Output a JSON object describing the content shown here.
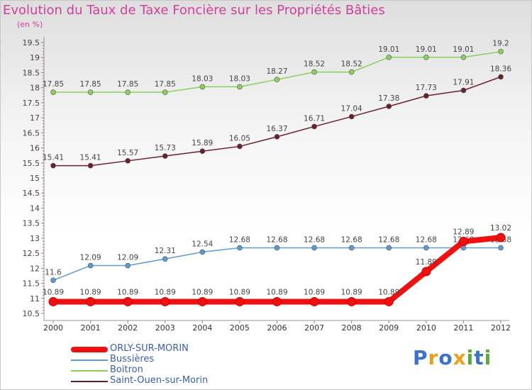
{
  "page": {
    "title": "Evolution du Taux de Taxe Foncière sur les Propriétés Bâties",
    "subtitle": "(en %)"
  },
  "chart_data": {
    "type": "line",
    "x": [
      "2000",
      "2001",
      "2002",
      "2003",
      "2004",
      "2005",
      "2006",
      "2007",
      "2008",
      "2009",
      "2010",
      "2011",
      "2012"
    ],
    "ylim": [
      10.5,
      19.5
    ],
    "y_ticks": [
      "10.5",
      "11",
      "11.5",
      "12",
      "12.5",
      "13",
      "13.5",
      "14",
      "14.5",
      "15",
      "15.5",
      "16",
      "16.5",
      "17",
      "17.5",
      "18",
      "18.5",
      "19",
      "19.5"
    ],
    "grid": false,
    "legend_position": "bottom-left",
    "series": [
      {
        "name": "Boitron",
        "color": "#8ccf5a",
        "values": [
          17.85,
          17.85,
          17.85,
          17.85,
          18.03,
          18.03,
          18.27,
          18.52,
          18.52,
          19.01,
          19.01,
          19.01,
          19.2
        ],
        "labels": [
          "17.85",
          "17.85",
          "17.85",
          "17.85",
          "18.03",
          "18.03",
          "18.27",
          "18.52",
          "18.52",
          "19.01",
          "19.01",
          "19.01",
          "19.2"
        ]
      },
      {
        "name": "Saint-Ouen-sur-Morin",
        "color": "#6b1f2a",
        "values": [
          15.41,
          15.41,
          15.57,
          15.73,
          15.89,
          16.05,
          16.37,
          16.71,
          17.04,
          17.38,
          17.73,
          17.91,
          18.36
        ],
        "labels": [
          "15.41",
          "15.41",
          "15.57",
          "15.73",
          "15.89",
          "16.05",
          "16.37",
          "16.71",
          "17.04",
          "17.38",
          "17.73",
          "17.91",
          "18.36"
        ]
      },
      {
        "name": "Bussières",
        "color": "#5b9bd0",
        "values": [
          11.6,
          12.09,
          12.09,
          12.31,
          12.54,
          12.68,
          12.68,
          12.68,
          12.68,
          12.68,
          12.68,
          12.68,
          12.68
        ],
        "labels": [
          "11.6",
          "12.09",
          "12.09",
          "12.31",
          "12.54",
          "12.68",
          "12.68",
          "12.68",
          "12.68",
          "12.68",
          "12.68",
          "12.68",
          "12.68"
        ]
      },
      {
        "name": "ORLY-SUR-MORIN",
        "color": "#ee1111",
        "values": [
          10.89,
          10.89,
          10.89,
          10.89,
          10.89,
          10.89,
          10.89,
          10.89,
          10.89,
          10.89,
          11.89,
          12.89,
          13.02
        ],
        "labels": [
          "10.89",
          "10.89",
          "10.89",
          "10.89",
          "10.89",
          "10.89",
          "10.89",
          "10.89",
          "10.89",
          "10.89",
          "11.89",
          "12.89",
          "13.02"
        ]
      }
    ]
  },
  "legend": {
    "items": [
      {
        "label": "ORLY-SUR-MORIN",
        "color": "#ee1111"
      },
      {
        "label": "Bussières",
        "color": "#5b9bd0"
      },
      {
        "label": "Boitron",
        "color": "#8ccf5a"
      },
      {
        "label": "Saint-Ouen-sur-Morin",
        "color": "#6b1f2a"
      }
    ]
  },
  "logo": {
    "letters": [
      "P",
      "r",
      "o",
      "x",
      "i",
      "t",
      "i"
    ],
    "colors": [
      "#3a73c8",
      "#e8a020",
      "#3a73c8",
      "#e8a020",
      "#5aaa3a",
      "#3a73c8",
      "#5aaa3a"
    ]
  }
}
